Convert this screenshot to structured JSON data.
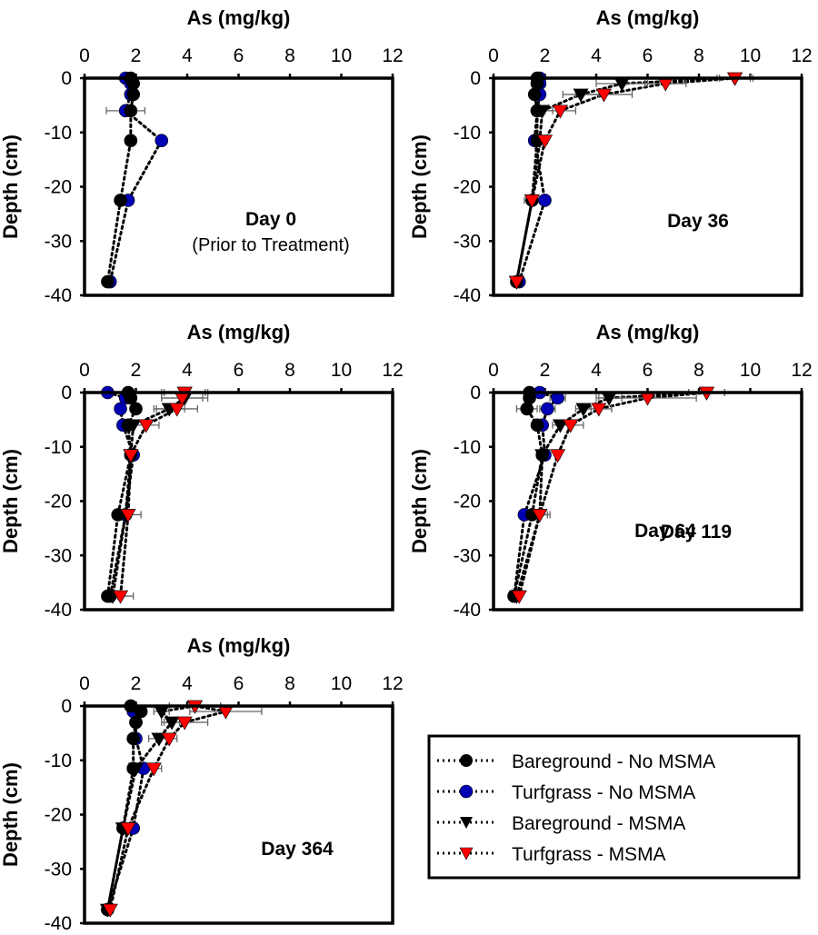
{
  "chart_data": {
    "type": "scatter",
    "xlabel": "As (mg/kg)",
    "ylabel": "Depth (cm)",
    "xlim": [
      0,
      12
    ],
    "ylim": [
      -40,
      0
    ],
    "xticks": [
      "0",
      "2",
      "4",
      "6",
      "8",
      "10",
      "12"
    ],
    "yticks": [
      "0",
      "-10",
      "-20",
      "-30",
      "-40"
    ],
    "legend": {
      "placement": "bottom-right",
      "entries": [
        {
          "name": "Bareground - No MSMA",
          "marker": "circle",
          "color": "#000000"
        },
        {
          "name": "Turfgrass - No MSMA",
          "marker": "circle",
          "color": "#0000b4"
        },
        {
          "name": "Bareground - MSMA",
          "marker": "triangle-down",
          "color": "#000000"
        },
        {
          "name": "Turfgrass - MSMA",
          "marker": "triangle-down",
          "color": "#ff0000"
        }
      ]
    },
    "depths": [
      0,
      -1,
      -3,
      -6,
      -11.5,
      -22.5,
      -37.5
    ],
    "panels": [
      {
        "title": "Day 0",
        "subtitle": "(Prior to Treatment)",
        "series": [
          {
            "name": "Bareground - No MSMA",
            "x": [
              1.8,
              1.9,
              1.9,
              1.8,
              1.8,
              1.4,
              0.9
            ],
            "y": [
              0,
              -1,
              -3,
              -6,
              -11.5,
              -22.5,
              -37.5
            ]
          },
          {
            "name": "Turfgrass - No MSMA",
            "x": [
              1.6,
              1.8,
              1.8,
              1.6,
              3.0,
              1.7,
              1.0
            ],
            "y": [
              0,
              -1,
              -3,
              -6,
              -11.5,
              -22.5,
              -37.5
            ],
            "xerr": [
              0,
              0,
              0,
              0.75,
              0,
              0,
              0
            ]
          }
        ]
      },
      {
        "title": "Day 36",
        "subtitle": "",
        "series": [
          {
            "name": "Bareground - No MSMA",
            "x": [
              1.7,
              1.7,
              1.6,
              1.7,
              1.7,
              1.5,
              0.9
            ],
            "y": [
              0,
              -1,
              -3,
              -6,
              -11.5,
              -22.5,
              -37.5
            ]
          },
          {
            "name": "Turfgrass - No MSMA",
            "x": [
              1.8,
              1.8,
              1.8,
              1.7,
              1.6,
              2.0,
              1.0
            ],
            "y": [
              0,
              -1,
              -3,
              -6,
              -11.5,
              -22.5,
              -37.5
            ]
          },
          {
            "name": "Bareground - MSMA",
            "x": [
              9.4,
              5.0,
              3.4,
              1.9,
              1.8,
              1.5,
              0.9
            ],
            "y": [
              0,
              -1,
              -3,
              -6,
              -11.5,
              -22.5,
              -37.5
            ],
            "xerr": [
              0.7,
              1.0,
              0.7,
              0.4,
              0.1,
              0.3,
              0
            ]
          },
          {
            "name": "Turfgrass - MSMA",
            "x": [
              9.4,
              6.7,
              4.3,
              2.6,
              2.0,
              1.5,
              0.9
            ],
            "y": [
              0,
              -1,
              -3,
              -6,
              -11.5,
              -22.5,
              -37.5
            ],
            "xerr": [
              0.6,
              0.8,
              1.1,
              0.6,
              0.1,
              0.2,
              0
            ]
          }
        ]
      },
      {
        "title": "Day 64",
        "subtitle": "",
        "series": [
          {
            "name": "Bareground - No MSMA",
            "x": [
              1.7,
              1.8,
              2.0,
              1.7,
              1.8,
              1.3,
              0.9
            ],
            "y": [
              0,
              -1,
              -3,
              -6,
              -11.5,
              -22.5,
              -37.5
            ]
          },
          {
            "name": "Turfgrass - No MSMA",
            "x": [
              0.9,
              1.6,
              1.4,
              1.5,
              1.9,
              1.6,
              1.0
            ],
            "y": [
              0,
              -1,
              -3,
              -6,
              -11.5,
              -22.5,
              -37.5
            ]
          },
          {
            "name": "Bareground - MSMA",
            "x": [
              3.9,
              3.9,
              3.3,
              1.9,
              1.8,
              1.6,
              1.1
            ],
            "y": [
              0,
              -1,
              -3,
              -6,
              -11.5,
              -22.5,
              -37.5
            ],
            "xerr": [
              0.9,
              0.9,
              0.6,
              0.4,
              0.1,
              0.2,
              0.2
            ]
          },
          {
            "name": "Turfgrass - MSMA",
            "x": [
              3.9,
              3.8,
              3.6,
              2.4,
              1.8,
              1.7,
              1.4
            ],
            "y": [
              0,
              -1,
              -3,
              -6,
              -11.5,
              -22.5,
              -37.5
            ],
            "xerr": [
              0.8,
              0.8,
              0.8,
              0.5,
              0.1,
              0.5,
              0.5
            ]
          }
        ]
      },
      {
        "title": "Day 119",
        "subtitle": "",
        "series": [
          {
            "name": "Bareground - No MSMA",
            "x": [
              1.4,
              1.4,
              1.3,
              1.7,
              1.9,
              1.5,
              0.8
            ],
            "y": [
              0,
              -1,
              -3,
              -6,
              -11.5,
              -22.5,
              -37.5
            ],
            "xerr": [
              0,
              0,
              0.4,
              0,
              0,
              0,
              0
            ]
          },
          {
            "name": "Turfgrass - No MSMA",
            "x": [
              1.8,
              2.5,
              2.1,
              1.9,
              2.0,
              1.2,
              0.8
            ],
            "y": [
              0,
              -1,
              -3,
              -6,
              -11.5,
              -22.5,
              -37.5
            ],
            "xerr": [
              0,
              0.3,
              0.3,
              0,
              0,
              0,
              0
            ]
          },
          {
            "name": "Bareground - MSMA",
            "x": [
              8.3,
              4.5,
              3.5,
              2.6,
              1.9,
              1.8,
              0.9
            ],
            "y": [
              0,
              -1,
              -3,
              -6,
              -11.5,
              -22.5,
              -37.5
            ],
            "xerr": [
              0.7,
              0.5,
              0.3,
              0.3,
              0.2,
              0.3,
              0
            ]
          },
          {
            "name": "Turfgrass - MSMA",
            "x": [
              8.3,
              6.0,
              4.1,
              3.0,
              2.5,
              1.8,
              1.0
            ],
            "y": [
              0,
              -1,
              -3,
              -6,
              -11.5,
              -22.5,
              -37.5
            ],
            "xerr": [
              0.7,
              1.9,
              0.5,
              0.5,
              0.1,
              0.4,
              0
            ]
          }
        ]
      },
      {
        "title": "Day 364",
        "subtitle": "",
        "series": [
          {
            "name": "Bareground - No MSMA",
            "x": [
              1.8,
              2.2,
              2.0,
              1.9,
              1.9,
              1.5,
              0.9
            ],
            "y": [
              0,
              -1,
              -3,
              -6,
              -11.5,
              -22.5,
              -37.5
            ]
          },
          {
            "name": "Turfgrass - No MSMA",
            "x": [
              1.8,
              1.9,
              2.0,
              2.0,
              2.3,
              1.9,
              0.9
            ],
            "y": [
              0,
              -1,
              -3,
              -6,
              -11.5,
              -22.5,
              -37.5
            ]
          },
          {
            "name": "Bareground - MSMA",
            "x": [
              4.3,
              3.0,
              3.4,
              2.9,
              2.0,
              1.5,
              0.9
            ],
            "y": [
              0,
              -1,
              -3,
              -6,
              -11.5,
              -22.5,
              -37.5
            ],
            "xerr": [
              1.0,
              0.3,
              0.3,
              0.4,
              0.3,
              0.1,
              0
            ]
          },
          {
            "name": "Turfgrass - MSMA",
            "x": [
              4.3,
              5.5,
              3.9,
              3.3,
              2.7,
              1.7,
              1.0
            ],
            "y": [
              0,
              -1,
              -3,
              -6,
              -11.5,
              -22.5,
              -37.5
            ],
            "xerr": [
              1.0,
              1.4,
              0.9,
              0.3,
              0.3,
              0.1,
              0
            ]
          }
        ]
      }
    ]
  }
}
